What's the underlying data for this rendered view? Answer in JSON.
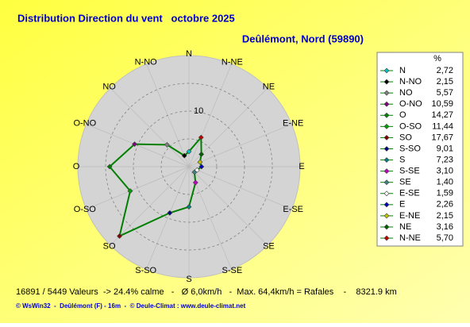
{
  "chart_data": {
    "type": "radar",
    "title": "Distribution Direction du vent   octobre 2025",
    "subtitle": "Deûlémont, Nord (59890)",
    "legend_header": "%",
    "categories": [
      "N",
      "N-NO",
      "NO",
      "O-NO",
      "O",
      "O-SO",
      "SO",
      "S-SO",
      "S",
      "S-SE",
      "SE",
      "E-SE",
      "E",
      "E-NE",
      "NE",
      "N-NE"
    ],
    "values": [
      2.72,
      2.15,
      5.57,
      10.59,
      14.27,
      11.44,
      17.67,
      9.01,
      7.23,
      3.1,
      1.4,
      1.59,
      2.26,
      2.15,
      3.16,
      5.7
    ],
    "value_labels": [
      "2,72",
      "2,15",
      "5,57",
      "10,59",
      "14,27",
      "11,44",
      "17,67",
      "9,01",
      "7,23",
      "3,10",
      "1,40",
      "1,59",
      "2,26",
      "2,15",
      "3,16",
      "5,70"
    ],
    "colors": [
      "#00c0c0",
      "#000000",
      "#808080",
      "#800080",
      "#008000",
      "#00a000",
      "#800000",
      "#000080",
      "#008080",
      "#c000c0",
      "#408080",
      "#ffffff",
      "#0000c0",
      "#c0c000",
      "#006000",
      "#c00000"
    ],
    "line_color": "#008000",
    "rlim": [
      0,
      20
    ],
    "rticks": [
      10
    ],
    "rgrid": [
      5,
      10,
      15
    ],
    "footer": "16891 / 5449 Valeurs  -> 24.4% calme   -   Ø 6,0km/h   -  Max. 64,4km/h = Rafales    -    8321.9 km",
    "credits": "© WsWin32  -  Deûlémont (F) - 16m  -  © Deule-Climat : www.deule-climat.net"
  }
}
